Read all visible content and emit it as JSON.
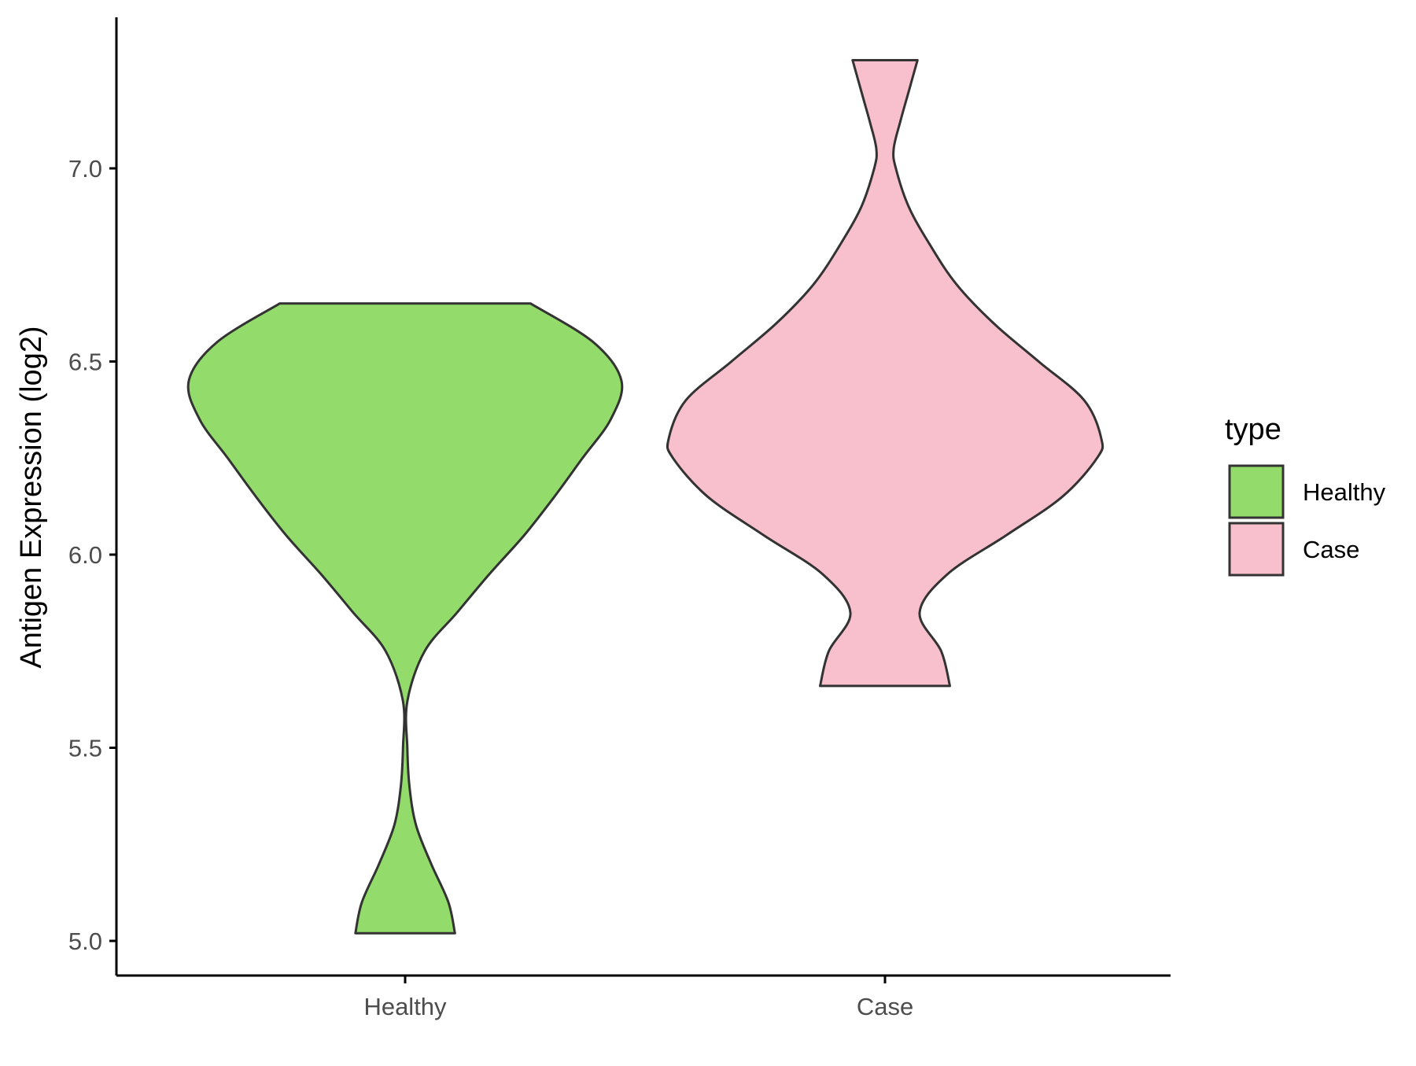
{
  "chart_data": {
    "type": "violin",
    "title": "",
    "xlabel": "",
    "ylabel": "Antigen Expression (log2)",
    "ylim": [
      4.9,
      7.38
    ],
    "yticks": [
      "5.0",
      "5.5",
      "6.0",
      "6.5",
      "7.0"
    ],
    "ytick_values": [
      5.0,
      5.5,
      6.0,
      6.5,
      7.0
    ],
    "categories": [
      "Healthy",
      "Case"
    ],
    "grid": false,
    "legend": {
      "title": "type",
      "placement": "right",
      "entries": [
        "Healthy",
        "Case"
      ]
    },
    "series": [
      {
        "name": "Healthy",
        "color": "#93dc6b",
        "min": 5.02,
        "max": 6.65,
        "density_profile": [
          [
            5.02,
            0.23
          ],
          [
            5.1,
            0.2
          ],
          [
            5.2,
            0.12
          ],
          [
            5.3,
            0.05
          ],
          [
            5.4,
            0.02
          ],
          [
            5.5,
            0.01
          ],
          [
            5.62,
            0.01
          ],
          [
            5.75,
            0.09
          ],
          [
            5.85,
            0.24
          ],
          [
            5.95,
            0.39
          ],
          [
            6.05,
            0.55
          ],
          [
            6.15,
            0.69
          ],
          [
            6.25,
            0.82
          ],
          [
            6.35,
            0.95
          ],
          [
            6.45,
            1.0
          ],
          [
            6.55,
            0.87
          ],
          [
            6.65,
            0.58
          ]
        ]
      },
      {
        "name": "Case",
        "color": "#f7c0cc",
        "min": 5.66,
        "max": 7.28,
        "density_profile": [
          [
            5.66,
            0.3
          ],
          [
            5.75,
            0.26
          ],
          [
            5.85,
            0.16
          ],
          [
            5.95,
            0.29
          ],
          [
            6.05,
            0.56
          ],
          [
            6.15,
            0.82
          ],
          [
            6.25,
            0.98
          ],
          [
            6.3,
            1.0
          ],
          [
            6.4,
            0.92
          ],
          [
            6.5,
            0.71
          ],
          [
            6.6,
            0.5
          ],
          [
            6.7,
            0.33
          ],
          [
            6.8,
            0.21
          ],
          [
            6.9,
            0.11
          ],
          [
            7.0,
            0.05
          ],
          [
            7.05,
            0.04
          ],
          [
            7.12,
            0.07
          ],
          [
            7.2,
            0.11
          ],
          [
            7.28,
            0.15
          ]
        ]
      }
    ]
  },
  "colors": {
    "outline": "#333333",
    "axis": "#000000",
    "tick_label": "#4d4d4d"
  }
}
